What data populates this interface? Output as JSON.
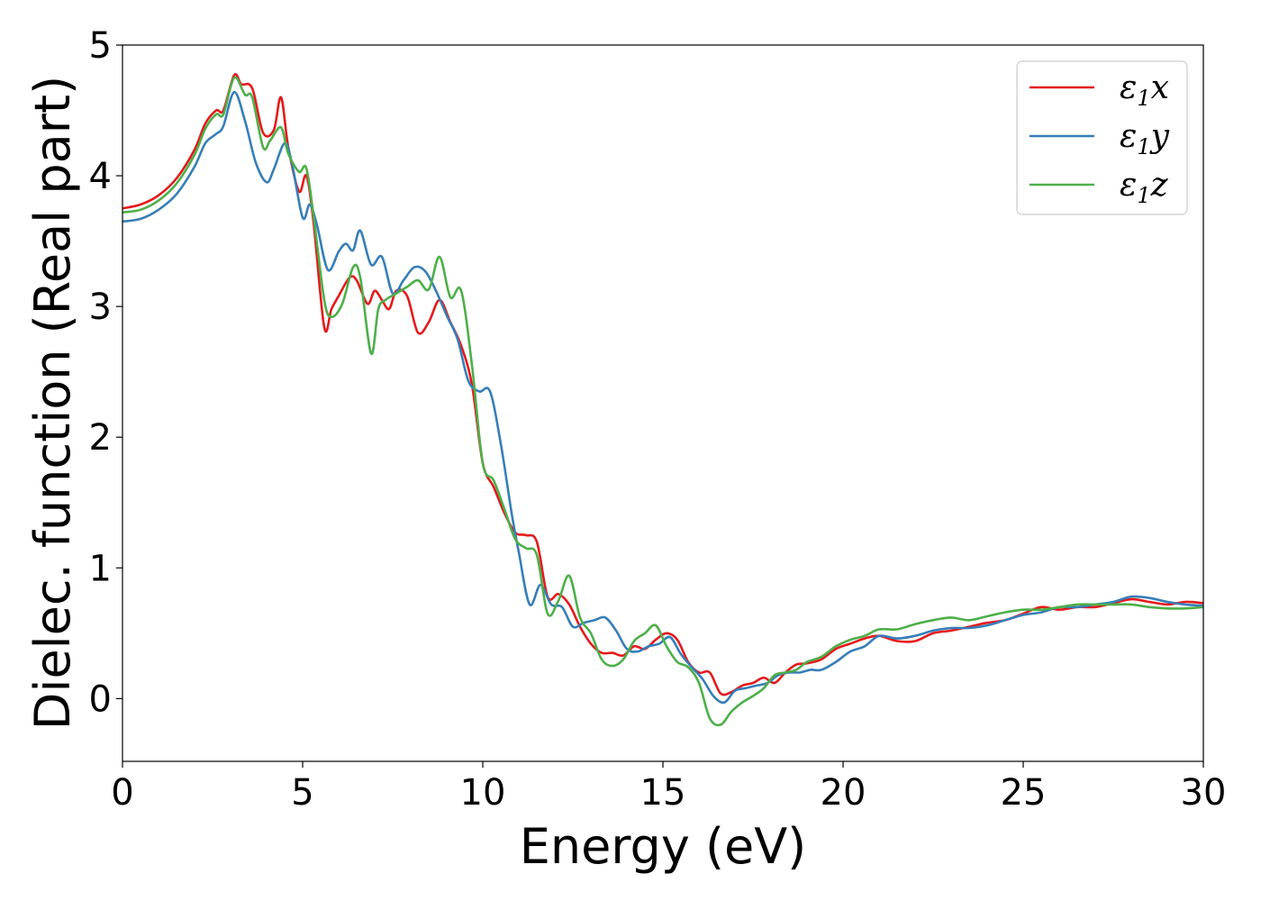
{
  "chart_data": {
    "type": "line",
    "xlabel": "Energy (eV)",
    "ylabel": "Dielec. function (Real part)",
    "xlim": [
      0,
      30
    ],
    "ylim": [
      -0.48,
      5.0
    ],
    "xticks": [
      0,
      5,
      10,
      15,
      20,
      25,
      30
    ],
    "yticks": [
      0,
      1,
      2,
      3,
      4,
      5
    ],
    "grid": false,
    "legend": "top-right",
    "legend_symbol": "ε",
    "series": [
      {
        "name": "ε1x",
        "label_sub": "1",
        "label_var": "x",
        "color": "#e41a1c",
        "x": [
          0,
          0.5,
          1.0,
          1.5,
          2.0,
          2.3,
          2.6,
          2.8,
          3.1,
          3.3,
          3.6,
          3.9,
          4.2,
          4.4,
          4.6,
          4.9,
          5.1,
          5.3,
          5.6,
          5.8,
          6.0,
          6.3,
          6.5,
          6.8,
          7.0,
          7.2,
          7.4,
          7.6,
          7.9,
          8.2,
          8.5,
          8.8,
          9.1,
          9.4,
          9.7,
          10.0,
          10.3,
          10.6,
          10.9,
          11.2,
          11.5,
          11.8,
          12.1,
          12.4,
          12.7,
          13.0,
          13.3,
          13.6,
          13.9,
          14.2,
          14.5,
          14.8,
          15.1,
          15.4,
          15.7,
          16.0,
          16.3,
          16.6,
          16.9,
          17.2,
          17.5,
          17.8,
          18.1,
          18.4,
          18.7,
          19.0,
          19.4,
          19.8,
          20.2,
          20.6,
          21.0,
          21.5,
          22.0,
          22.5,
          23.0,
          23.5,
          24.0,
          24.5,
          25.0,
          25.5,
          26.0,
          26.5,
          27.0,
          27.5,
          28.0,
          28.5,
          29.0,
          29.5,
          30.0
        ],
        "y": [
          3.75,
          3.78,
          3.85,
          3.98,
          4.2,
          4.4,
          4.5,
          4.5,
          4.77,
          4.7,
          4.67,
          4.33,
          4.35,
          4.6,
          4.22,
          3.88,
          4.0,
          3.65,
          2.84,
          2.98,
          3.08,
          3.22,
          3.2,
          3.02,
          3.12,
          3.05,
          2.98,
          3.12,
          3.08,
          2.8,
          2.88,
          3.05,
          2.88,
          2.7,
          2.4,
          1.8,
          1.62,
          1.42,
          1.27,
          1.25,
          1.2,
          0.78,
          0.8,
          0.72,
          0.55,
          0.42,
          0.35,
          0.35,
          0.33,
          0.4,
          0.38,
          0.45,
          0.5,
          0.45,
          0.28,
          0.2,
          0.2,
          0.04,
          0.05,
          0.1,
          0.12,
          0.16,
          0.12,
          0.2,
          0.26,
          0.27,
          0.3,
          0.38,
          0.42,
          0.46,
          0.48,
          0.44,
          0.44,
          0.5,
          0.52,
          0.55,
          0.58,
          0.6,
          0.65,
          0.7,
          0.68,
          0.7,
          0.7,
          0.73,
          0.76,
          0.74,
          0.72,
          0.74,
          0.73
        ]
      },
      {
        "name": "ε1y",
        "label_sub": "1",
        "label_var": "y",
        "color": "#377eb8",
        "x": [
          0,
          0.5,
          1.0,
          1.5,
          2.0,
          2.3,
          2.6,
          2.8,
          3.1,
          3.4,
          3.7,
          4.0,
          4.2,
          4.5,
          4.7,
          5.0,
          5.2,
          5.4,
          5.7,
          6.0,
          6.2,
          6.4,
          6.6,
          6.9,
          7.2,
          7.5,
          7.8,
          8.1,
          8.4,
          8.7,
          9.0,
          9.3,
          9.6,
          9.9,
          10.2,
          10.5,
          10.8,
          11.0,
          11.3,
          11.6,
          11.9,
          12.2,
          12.5,
          12.8,
          13.1,
          13.4,
          13.7,
          14.0,
          14.3,
          14.6,
          14.9,
          15.2,
          15.5,
          15.8,
          16.1,
          16.4,
          16.7,
          17.0,
          17.3,
          17.6,
          17.9,
          18.2,
          18.5,
          18.8,
          19.1,
          19.4,
          19.8,
          20.2,
          20.6,
          21.0,
          21.5,
          22.0,
          22.5,
          23.0,
          23.5,
          24.0,
          24.5,
          25.0,
          25.5,
          26.0,
          26.5,
          27.0,
          27.5,
          28.0,
          28.5,
          29.0,
          29.5,
          30.0
        ],
        "y": [
          3.65,
          3.67,
          3.74,
          3.86,
          4.07,
          4.25,
          4.32,
          4.38,
          4.64,
          4.42,
          4.1,
          3.95,
          4.05,
          4.25,
          4.1,
          3.68,
          3.78,
          3.62,
          3.28,
          3.42,
          3.48,
          3.43,
          3.58,
          3.32,
          3.38,
          3.1,
          3.2,
          3.3,
          3.27,
          3.12,
          2.93,
          2.75,
          2.43,
          2.35,
          2.35,
          1.95,
          1.42,
          1.12,
          0.72,
          0.87,
          0.72,
          0.7,
          0.55,
          0.58,
          0.6,
          0.62,
          0.52,
          0.38,
          0.36,
          0.4,
          0.42,
          0.47,
          0.34,
          0.24,
          0.15,
          0.02,
          -0.03,
          0.06,
          0.08,
          0.1,
          0.12,
          0.18,
          0.2,
          0.2,
          0.22,
          0.22,
          0.28,
          0.36,
          0.4,
          0.48,
          0.46,
          0.48,
          0.52,
          0.54,
          0.54,
          0.56,
          0.6,
          0.64,
          0.66,
          0.7,
          0.7,
          0.72,
          0.74,
          0.78,
          0.77,
          0.74,
          0.72,
          0.71
        ]
      },
      {
        "name": "ε1z",
        "label_sub": "1",
        "label_var": "z",
        "color": "#4daf4a",
        "x": [
          0,
          0.5,
          1.0,
          1.5,
          2.0,
          2.3,
          2.6,
          2.8,
          3.1,
          3.4,
          3.6,
          3.9,
          4.1,
          4.4,
          4.6,
          4.9,
          5.1,
          5.3,
          5.6,
          5.8,
          6.1,
          6.4,
          6.6,
          6.9,
          7.1,
          7.3,
          7.6,
          7.9,
          8.2,
          8.5,
          8.8,
          9.1,
          9.4,
          9.7,
          10.0,
          10.3,
          10.6,
          10.9,
          11.2,
          11.5,
          11.8,
          12.1,
          12.4,
          12.7,
          13.0,
          13.3,
          13.6,
          13.9,
          14.2,
          14.5,
          14.8,
          15.1,
          15.4,
          15.7,
          16.0,
          16.3,
          16.6,
          16.9,
          17.2,
          17.5,
          17.8,
          18.1,
          18.4,
          18.7,
          19.0,
          19.4,
          19.8,
          20.2,
          20.6,
          21.0,
          21.5,
          22.0,
          22.5,
          23.0,
          23.5,
          24.0,
          24.5,
          25.0,
          25.5,
          26.0,
          26.5,
          27.0,
          27.5,
          28.0,
          28.5,
          29.0,
          29.5,
          30.0
        ],
        "y": [
          3.72,
          3.74,
          3.81,
          3.94,
          4.16,
          4.36,
          4.47,
          4.47,
          4.75,
          4.62,
          4.6,
          4.22,
          4.27,
          4.37,
          4.17,
          4.03,
          4.06,
          3.7,
          3.05,
          2.92,
          3.02,
          3.3,
          3.22,
          2.64,
          2.98,
          3.05,
          3.1,
          3.15,
          3.2,
          3.13,
          3.38,
          3.07,
          3.12,
          2.55,
          1.8,
          1.67,
          1.45,
          1.22,
          1.15,
          1.1,
          0.65,
          0.75,
          0.94,
          0.62,
          0.5,
          0.3,
          0.25,
          0.3,
          0.44,
          0.5,
          0.56,
          0.4,
          0.28,
          0.24,
          0.12,
          -0.15,
          -0.2,
          -0.1,
          -0.03,
          0.02,
          0.08,
          0.18,
          0.2,
          0.22,
          0.28,
          0.32,
          0.4,
          0.45,
          0.48,
          0.53,
          0.53,
          0.57,
          0.6,
          0.62,
          0.6,
          0.63,
          0.66,
          0.68,
          0.68,
          0.7,
          0.72,
          0.72,
          0.72,
          0.72,
          0.7,
          0.69,
          0.69,
          0.7
        ]
      }
    ]
  }
}
